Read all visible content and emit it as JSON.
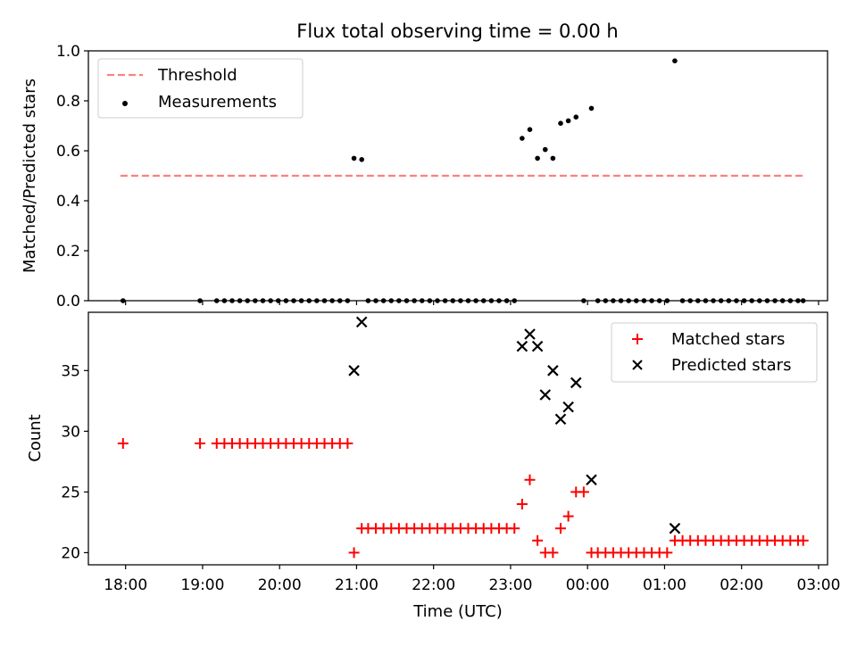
{
  "chart_data": [
    {
      "type": "scatter",
      "title": "Flux total observing time = 0.00 h",
      "xlabel": "",
      "ylabel": "Matched/Predicted stars",
      "xlim": [
        "17:31",
        "03:07"
      ],
      "ylim": [
        0,
        1.0
      ],
      "y_ticks": [
        0.0,
        0.2,
        0.4,
        0.6,
        0.8,
        1.0
      ],
      "y_tick_labels": [
        "0.0",
        "0.2",
        "0.4",
        "0.6",
        "0.8",
        "1.0"
      ],
      "legend_position": "top-left",
      "legend": [
        {
          "label": "Threshold",
          "style": "dashed-line",
          "color": "#ff7f7f"
        },
        {
          "label": "Measurements",
          "style": "dot",
          "color": "#000000"
        }
      ],
      "threshold": {
        "value": 0.5,
        "x_range": [
          "17:56",
          "02:48"
        ],
        "color": "#ff7f7f"
      },
      "series": [
        {
          "name": "Measurements",
          "points": [
            [
              "17:58",
              0
            ],
            [
              "18:58",
              0
            ],
            [
              "19:11",
              0
            ],
            [
              "19:17",
              0
            ],
            [
              "19:23",
              0
            ],
            [
              "19:29",
              0
            ],
            [
              "19:35",
              0
            ],
            [
              "19:41",
              0
            ],
            [
              "19:47",
              0
            ],
            [
              "19:53",
              0
            ],
            [
              "19:59",
              0
            ],
            [
              "20:05",
              0
            ],
            [
              "20:11",
              0
            ],
            [
              "20:17",
              0
            ],
            [
              "20:23",
              0
            ],
            [
              "20:29",
              0
            ],
            [
              "20:35",
              0
            ],
            [
              "20:41",
              0
            ],
            [
              "20:47",
              0
            ],
            [
              "20:53",
              0
            ],
            [
              "20:58",
              0.57
            ],
            [
              "21:04",
              0.565
            ],
            [
              "21:09",
              0
            ],
            [
              "21:15",
              0
            ],
            [
              "21:21",
              0
            ],
            [
              "21:27",
              0
            ],
            [
              "21:33",
              0
            ],
            [
              "21:39",
              0
            ],
            [
              "21:45",
              0
            ],
            [
              "21:51",
              0
            ],
            [
              "21:57",
              0
            ],
            [
              "22:03",
              0
            ],
            [
              "22:09",
              0
            ],
            [
              "22:15",
              0
            ],
            [
              "22:21",
              0
            ],
            [
              "22:27",
              0
            ],
            [
              "22:33",
              0
            ],
            [
              "22:39",
              0
            ],
            [
              "22:45",
              0
            ],
            [
              "22:51",
              0
            ],
            [
              "22:57",
              0
            ],
            [
              "23:03",
              0
            ],
            [
              "23:09",
              0.65
            ],
            [
              "23:15",
              0.685
            ],
            [
              "23:21",
              0.57
            ],
            [
              "23:27",
              0.605
            ],
            [
              "23:33",
              0.57
            ],
            [
              "23:39",
              0.71
            ],
            [
              "23:45",
              0.72
            ],
            [
              "23:51",
              0.735
            ],
            [
              "23:57",
              0
            ],
            [
              "00:03",
              0.77
            ],
            [
              "00:08",
              0
            ],
            [
              "00:14",
              0
            ],
            [
              "00:20",
              0
            ],
            [
              "00:26",
              0
            ],
            [
              "00:32",
              0
            ],
            [
              "00:38",
              0
            ],
            [
              "00:44",
              0
            ],
            [
              "00:50",
              0
            ],
            [
              "00:56",
              0
            ],
            [
              "01:02",
              0
            ],
            [
              "01:08",
              0.96
            ],
            [
              "01:14",
              0
            ],
            [
              "01:20",
              0
            ],
            [
              "01:26",
              0
            ],
            [
              "01:32",
              0
            ],
            [
              "01:38",
              0
            ],
            [
              "01:44",
              0
            ],
            [
              "01:50",
              0
            ],
            [
              "01:56",
              0
            ],
            [
              "02:02",
              0
            ],
            [
              "02:08",
              0
            ],
            [
              "02:14",
              0
            ],
            [
              "02:20",
              0
            ],
            [
              "02:26",
              0
            ],
            [
              "02:32",
              0
            ],
            [
              "02:38",
              0
            ],
            [
              "02:44",
              0
            ],
            [
              "02:48",
              0
            ]
          ]
        }
      ]
    },
    {
      "type": "scatter",
      "title": "",
      "xlabel": "Time (UTC)",
      "ylabel": "Count",
      "xlim": [
        "17:31",
        "03:07"
      ],
      "ylim": [
        19,
        39.8
      ],
      "y_ticks": [
        20,
        25,
        30,
        35
      ],
      "y_tick_labels": [
        "20",
        "25",
        "30",
        "35"
      ],
      "x_ticks": [
        "18:00",
        "19:00",
        "20:00",
        "21:00",
        "22:00",
        "23:00",
        "00:00",
        "01:00",
        "02:00",
        "03:00"
      ],
      "x_tick_labels": [
        "18:00",
        "19:00",
        "20:00",
        "21:00",
        "22:00",
        "23:00",
        "00:00",
        "01:00",
        "02:00",
        "03:00"
      ],
      "legend_position": "top-right",
      "legend": [
        {
          "label": "Matched stars",
          "marker": "+",
          "color": "#ff0000"
        },
        {
          "label": "Predicted stars",
          "marker": "x",
          "color": "#000000"
        }
      ],
      "series": [
        {
          "name": "Matched stars",
          "marker": "+",
          "color": "#ff0000",
          "points": [
            [
              "17:58",
              29
            ],
            [
              "18:58",
              29
            ],
            [
              "19:11",
              29
            ],
            [
              "19:17",
              29
            ],
            [
              "19:23",
              29
            ],
            [
              "19:29",
              29
            ],
            [
              "19:35",
              29
            ],
            [
              "19:41",
              29
            ],
            [
              "19:47",
              29
            ],
            [
              "19:53",
              29
            ],
            [
              "19:59",
              29
            ],
            [
              "20:05",
              29
            ],
            [
              "20:11",
              29
            ],
            [
              "20:17",
              29
            ],
            [
              "20:23",
              29
            ],
            [
              "20:29",
              29
            ],
            [
              "20:35",
              29
            ],
            [
              "20:41",
              29
            ],
            [
              "20:47",
              29
            ],
            [
              "20:53",
              29
            ],
            [
              "20:58",
              20
            ],
            [
              "21:04",
              22
            ],
            [
              "21:09",
              22
            ],
            [
              "21:15",
              22
            ],
            [
              "21:21",
              22
            ],
            [
              "21:27",
              22
            ],
            [
              "21:33",
              22
            ],
            [
              "21:39",
              22
            ],
            [
              "21:45",
              22
            ],
            [
              "21:51",
              22
            ],
            [
              "21:57",
              22
            ],
            [
              "22:03",
              22
            ],
            [
              "22:09",
              22
            ],
            [
              "22:15",
              22
            ],
            [
              "22:21",
              22
            ],
            [
              "22:27",
              22
            ],
            [
              "22:33",
              22
            ],
            [
              "22:39",
              22
            ],
            [
              "22:45",
              22
            ],
            [
              "22:51",
              22
            ],
            [
              "22:57",
              22
            ],
            [
              "23:03",
              22
            ],
            [
              "23:09",
              24
            ],
            [
              "23:15",
              26
            ],
            [
              "23:21",
              21
            ],
            [
              "23:27",
              20
            ],
            [
              "23:33",
              20
            ],
            [
              "23:39",
              22
            ],
            [
              "23:45",
              23
            ],
            [
              "23:51",
              25
            ],
            [
              "23:57",
              25
            ],
            [
              "00:03",
              20
            ],
            [
              "00:08",
              20
            ],
            [
              "00:14",
              20
            ],
            [
              "00:20",
              20
            ],
            [
              "00:26",
              20
            ],
            [
              "00:32",
              20
            ],
            [
              "00:38",
              20
            ],
            [
              "00:44",
              20
            ],
            [
              "00:50",
              20
            ],
            [
              "00:56",
              20
            ],
            [
              "01:02",
              20
            ],
            [
              "01:08",
              21
            ],
            [
              "01:14",
              21
            ],
            [
              "01:20",
              21
            ],
            [
              "01:26",
              21
            ],
            [
              "01:32",
              21
            ],
            [
              "01:38",
              21
            ],
            [
              "01:44",
              21
            ],
            [
              "01:50",
              21
            ],
            [
              "01:56",
              21
            ],
            [
              "02:02",
              21
            ],
            [
              "02:08",
              21
            ],
            [
              "02:14",
              21
            ],
            [
              "02:20",
              21
            ],
            [
              "02:26",
              21
            ],
            [
              "02:32",
              21
            ],
            [
              "02:38",
              21
            ],
            [
              "02:44",
              21
            ],
            [
              "02:48",
              21
            ]
          ]
        },
        {
          "name": "Predicted stars",
          "marker": "x",
          "color": "#000000",
          "points": [
            [
              "20:58",
              35
            ],
            [
              "21:04",
              39
            ],
            [
              "23:09",
              37
            ],
            [
              "23:15",
              38
            ],
            [
              "23:21",
              37
            ],
            [
              "23:27",
              33
            ],
            [
              "23:33",
              35
            ],
            [
              "23:39",
              31
            ],
            [
              "23:45",
              32
            ],
            [
              "23:51",
              34
            ],
            [
              "00:03",
              26
            ],
            [
              "01:08",
              22
            ]
          ]
        }
      ]
    }
  ]
}
